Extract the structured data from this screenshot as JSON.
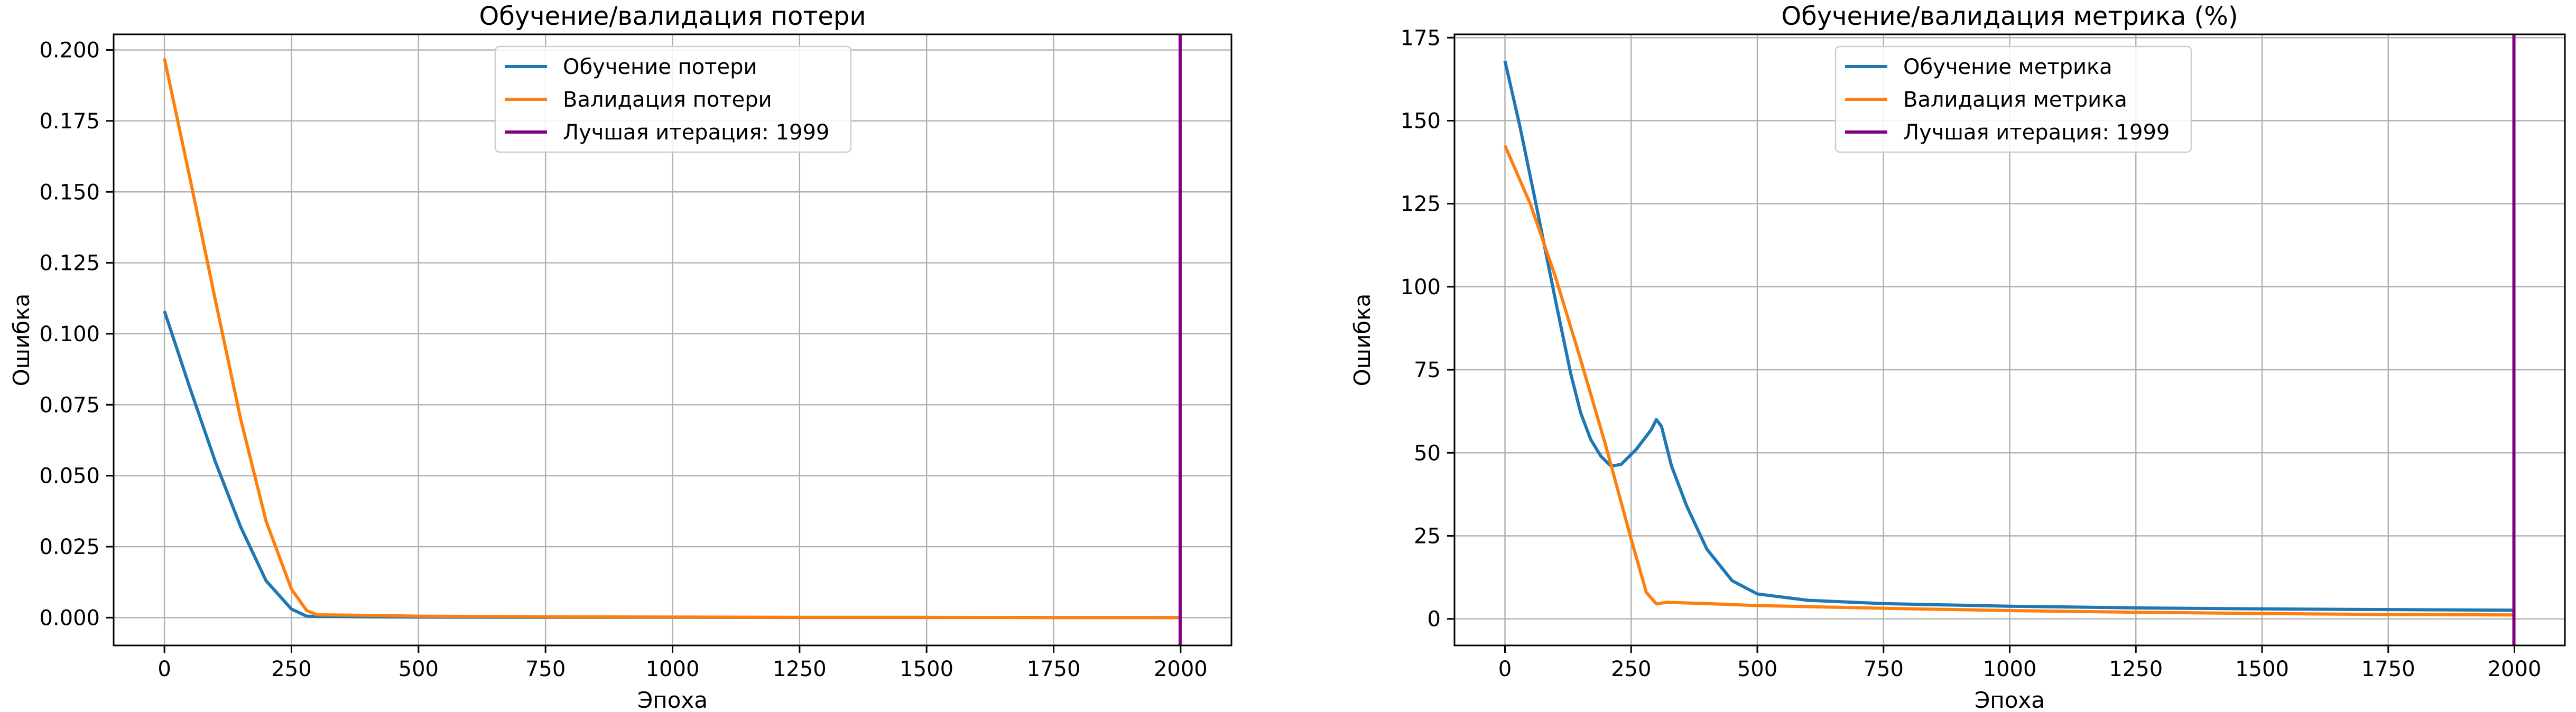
{
  "chart_data": [
    {
      "type": "line",
      "title": "Обучение/валидация потери",
      "xlabel": "Эпоха",
      "ylabel": "Ошибка",
      "xlim": [
        -100,
        2100
      ],
      "ylim": [
        -0.0098,
        0.2055
      ],
      "xticks": [
        0,
        250,
        500,
        750,
        1000,
        1250,
        1500,
        1750,
        2000
      ],
      "yticks": [
        0.0,
        0.025,
        0.05,
        0.075,
        0.1,
        0.125,
        0.15,
        0.175,
        0.2
      ],
      "ytick_decimals": 3,
      "grid": true,
      "legend_position": "upper-center",
      "series": [
        {
          "name": "Обучение потери",
          "color": "#1f77b4",
          "x": [
            0,
            50,
            100,
            150,
            200,
            250,
            280,
            300,
            400,
            500,
            750,
            1000,
            1250,
            1500,
            1750,
            1999
          ],
          "y": [
            0.108,
            0.081,
            0.055,
            0.032,
            0.013,
            0.003,
            0.0005,
            0.0004,
            0.0003,
            0.0002,
            0.0001,
            0.0001,
            5e-05,
            5e-05,
            3e-05,
            2e-05
          ]
        },
        {
          "name": "Валидация потери",
          "color": "#ff7f0e",
          "x": [
            0,
            50,
            100,
            150,
            200,
            250,
            280,
            300,
            400,
            500,
            750,
            1000,
            1250,
            1500,
            1750,
            1999
          ],
          "y": [
            0.197,
            0.155,
            0.112,
            0.07,
            0.034,
            0.01,
            0.0025,
            0.001,
            0.0008,
            0.0005,
            0.0003,
            0.0002,
            0.0001,
            0.0001,
            5e-05,
            3e-05
          ]
        }
      ],
      "vline": {
        "name": "Лучшая итерация: 1999",
        "x": 1999,
        "color": "#800080"
      }
    },
    {
      "type": "line",
      "title": "Обучение/валидация метрика (%)",
      "xlabel": "Эпоха",
      "ylabel": "Ошибка",
      "xlim": [
        -100,
        2100
      ],
      "ylim": [
        -8,
        176
      ],
      "xticks": [
        0,
        250,
        500,
        750,
        1000,
        1250,
        1500,
        1750,
        2000
      ],
      "yticks": [
        0,
        25,
        50,
        75,
        100,
        125,
        150,
        175
      ],
      "ytick_decimals": 0,
      "grid": true,
      "legend_position": "upper-center",
      "series": [
        {
          "name": "Обучение метрика",
          "color": "#1f77b4",
          "x": [
            0,
            30,
            60,
            100,
            130,
            150,
            170,
            190,
            210,
            230,
            260,
            290,
            300,
            310,
            330,
            360,
            400,
            450,
            500,
            600,
            750,
            1000,
            1250,
            1500,
            1750,
            1999
          ],
          "y": [
            168,
            148,
            126,
            96,
            74,
            62,
            54,
            49,
            46,
            46.5,
            51,
            57,
            60,
            58,
            46,
            34,
            21,
            11.5,
            7.5,
            5.6,
            4.6,
            3.8,
            3.3,
            3.0,
            2.8,
            2.6
          ]
        },
        {
          "name": "Валидация метрика",
          "color": "#ff7f0e",
          "x": [
            0,
            50,
            100,
            150,
            200,
            250,
            280,
            300,
            320,
            400,
            500,
            750,
            1000,
            1250,
            1500,
            1750,
            1999
          ],
          "y": [
            142.5,
            125,
            103,
            78,
            52,
            24,
            8,
            4.5,
            5.0,
            4.6,
            4.0,
            3.2,
            2.5,
            2.0,
            1.6,
            1.3,
            1.2
          ]
        }
      ],
      "vline": {
        "name": "Лучшая итерация: 1999",
        "x": 1999,
        "color": "#800080"
      }
    }
  ]
}
